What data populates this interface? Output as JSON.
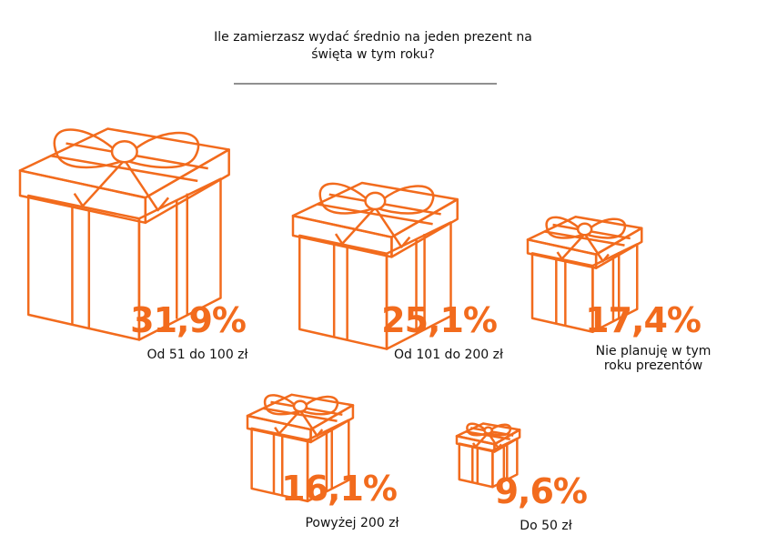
{
  "chart_data": {
    "type": "gift",
    "title": "Ile zamierzasz wydać średnio na jeden prezent na święta w tym roku?",
    "categories": [
      "Od 51 do 100 zł",
      "Od 101 do 200 zł",
      "Nie planuję w tym roku prezentów",
      "Powyżej 200 zł",
      "Do 50 zł"
    ],
    "values": [
      31.9,
      25.1,
      17.4,
      16.1,
      9.6
    ],
    "value_labels": [
      "31,9%",
      "25,1%",
      "17,4%",
      "16,1%",
      "9,6%"
    ],
    "color": "#f26b1d"
  }
}
